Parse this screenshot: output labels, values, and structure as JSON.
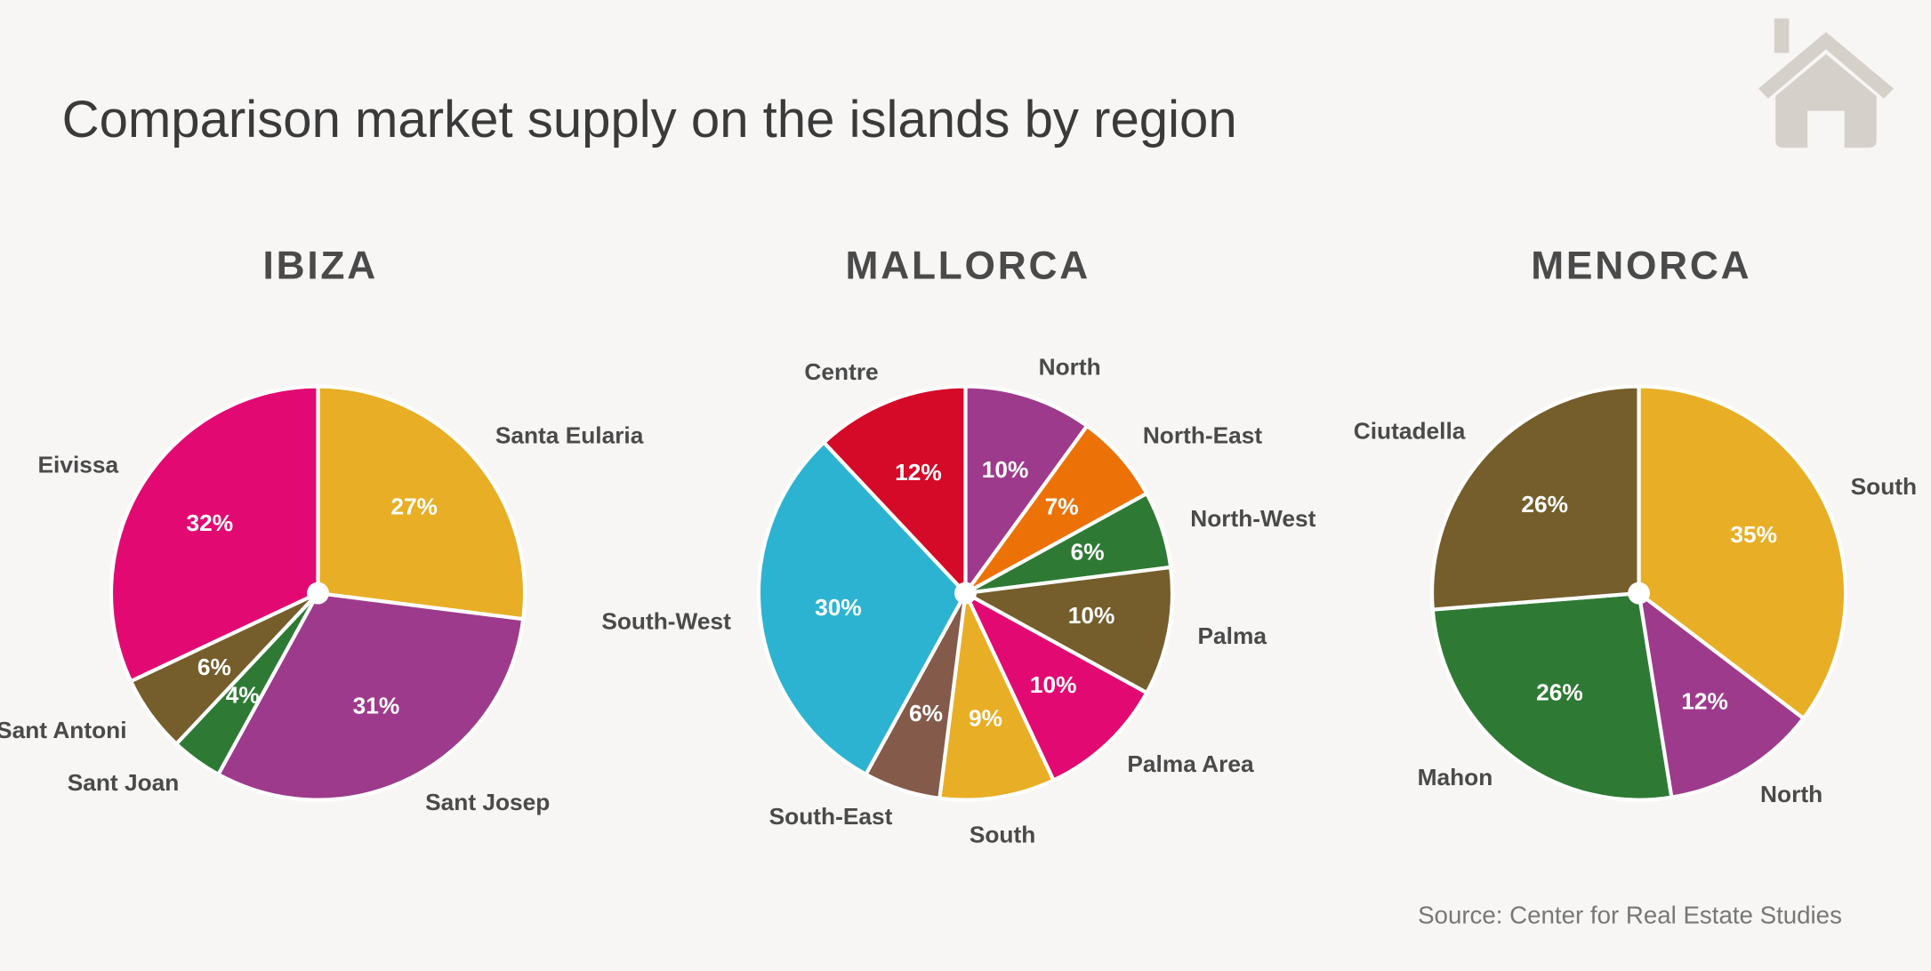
{
  "title": "Comparison market supply on the islands by region",
  "source": "Source: Center for Real Estate Studies",
  "chart_data": [
    {
      "type": "pie",
      "title": "IBIZA",
      "categories": [
        "Santa Eularia",
        "Sant Josep",
        "Sant Joan",
        "Sant Antoni",
        "Eivissa"
      ],
      "values": [
        27,
        31,
        4,
        6,
        32
      ],
      "value_labels": [
        "27%",
        "31%",
        "4%",
        "6%",
        "32%"
      ],
      "colors": [
        "#e8ae25",
        "#9e3a8c",
        "#2e7a35",
        "#755e2c",
        "#e20a72"
      ]
    },
    {
      "type": "pie",
      "title": "MALLORCA",
      "categories": [
        "North",
        "North-East",
        "North-West",
        "Palma",
        "Palma Area",
        "South",
        "South-East",
        "South-West",
        "Centre"
      ],
      "values": [
        10,
        7,
        6,
        10,
        10,
        9,
        6,
        30,
        12
      ],
      "value_labels": [
        "10%",
        "7%",
        "6%",
        "10%",
        "10%",
        "9%",
        "6%",
        "30%",
        "12%"
      ],
      "colors": [
        "#9e3a8c",
        "#ec7207",
        "#2e7a35",
        "#755e2c",
        "#e20a72",
        "#e8ae25",
        "#845a4b",
        "#2db3d2",
        "#d40a28"
      ]
    },
    {
      "type": "pie",
      "title": "MENORCA",
      "categories": [
        "South",
        "North",
        "Mahon",
        "Ciutadella"
      ],
      "values": [
        35,
        12,
        26,
        26
      ],
      "value_labels": [
        "35%",
        "12%",
        "26%",
        "26%"
      ],
      "colors": [
        "#e8ae25",
        "#9e3a8c",
        "#2e7a35",
        "#755e2c"
      ]
    }
  ]
}
